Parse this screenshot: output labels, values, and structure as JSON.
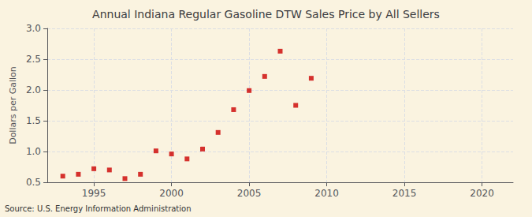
{
  "chart_data": {
    "type": "scatter",
    "title": "Annual Indiana Regular Gasoline DTW Sales Price by All Sellers",
    "ylabel": "Dollars per Gallon",
    "source": "Source: U.S. Energy Information Administration",
    "x": [
      1993,
      1994,
      1995,
      1996,
      1997,
      1998,
      1999,
      2000,
      2001,
      2002,
      2003,
      2004,
      2005,
      2006,
      2007,
      2008,
      2009
    ],
    "values": [
      0.6,
      0.63,
      0.72,
      0.7,
      0.56,
      0.63,
      1.01,
      0.96,
      0.88,
      1.04,
      1.31,
      1.68,
      1.99,
      2.22,
      2.63,
      1.75,
      2.19
    ],
    "color": "#cc0000",
    "marker": "square",
    "xlim": [
      1992,
      2022
    ],
    "xticks": [
      1995,
      2000,
      2005,
      2010,
      2015,
      2020
    ],
    "ylim": [
      0.5,
      3.0
    ],
    "yticks": [
      0.5,
      {
        "value": 1.0,
        "label": "1.0"
      },
      1.5,
      {
        "value": 2.0,
        "label": "2.0"
      },
      2.5,
      {
        "value": 3.0,
        "label": "3.0"
      }
    ],
    "grid": true
  }
}
